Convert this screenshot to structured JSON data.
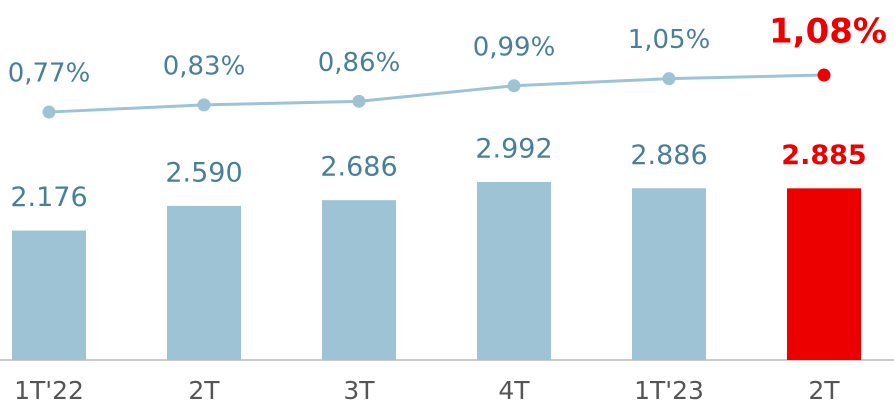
{
  "chart_data": {
    "type": "bar",
    "categories": [
      "1T'22",
      "2T",
      "3T",
      "4T",
      "1T'23",
      "2T"
    ],
    "series": [
      {
        "type": "bar",
        "colors": [
          "#9dc3d4",
          "#9dc3d4",
          "#9dc3d4",
          "#9dc3d4",
          "#9dc3d4",
          "#ec0000"
        ],
        "values": [
          2176,
          2590,
          2686,
          2992,
          2886,
          2885
        ],
        "value_labels": [
          "2.176",
          "2.590",
          "2.686",
          "2.992",
          "2.886",
          "2.885"
        ]
      },
      {
        "type": "line",
        "color": "#9dc3d4",
        "colors": [
          "#9dc3d4",
          "#9dc3d4",
          "#9dc3d4",
          "#9dc3d4",
          "#9dc3d4",
          "#ec0000"
        ],
        "values": [
          0.77,
          0.83,
          0.86,
          0.99,
          1.05,
          1.08
        ],
        "value_labels": [
          "0,77%",
          "0,83%",
          "0,86%",
          "0,99%",
          "1,05%",
          "1,08%"
        ]
      }
    ]
  }
}
